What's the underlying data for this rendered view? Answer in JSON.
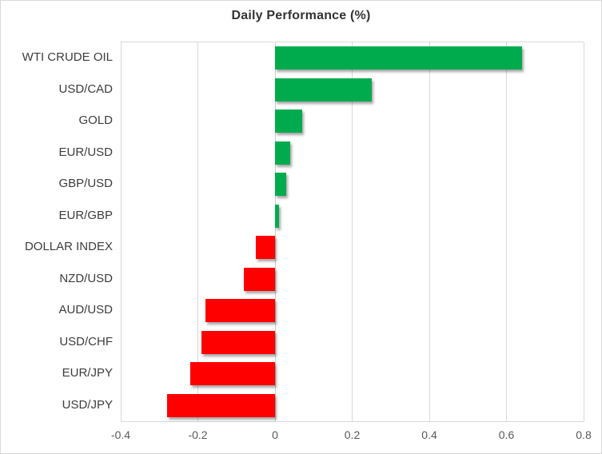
{
  "chart_data": {
    "type": "bar",
    "orientation": "horizontal",
    "title": "Daily Performance (%)",
    "categories": [
      "WTI CRUDE OIL",
      "USD/CAD",
      "GOLD",
      "EUR/USD",
      "GBP/USD",
      "EUR/GBP",
      "DOLLAR INDEX",
      "NZD/USD",
      "AUD/USD",
      "USD/CHF",
      "EUR/JPY",
      "USD/JPY"
    ],
    "values": [
      0.64,
      0.25,
      0.07,
      0.04,
      0.03,
      0.01,
      -0.05,
      -0.08,
      -0.18,
      -0.19,
      -0.22,
      -0.28
    ],
    "xlabel": "",
    "ylabel": "",
    "xlim": [
      -0.4,
      0.8
    ],
    "x_ticks": [
      -0.4,
      -0.2,
      0,
      0.2,
      0.4,
      0.6,
      0.8
    ],
    "x_tick_labels": [
      "-0.4",
      "-0.2",
      "0",
      "0.2",
      "0.4",
      "0.6",
      "0.8"
    ],
    "grid": true,
    "legend": false,
    "colors": {
      "positive": "#00ab4e",
      "negative": "#ff0000",
      "gridline": "#d9d9d9",
      "title_text": "#333333",
      "category_text": "#3d3d3d",
      "tick_text": "#595959"
    }
  }
}
